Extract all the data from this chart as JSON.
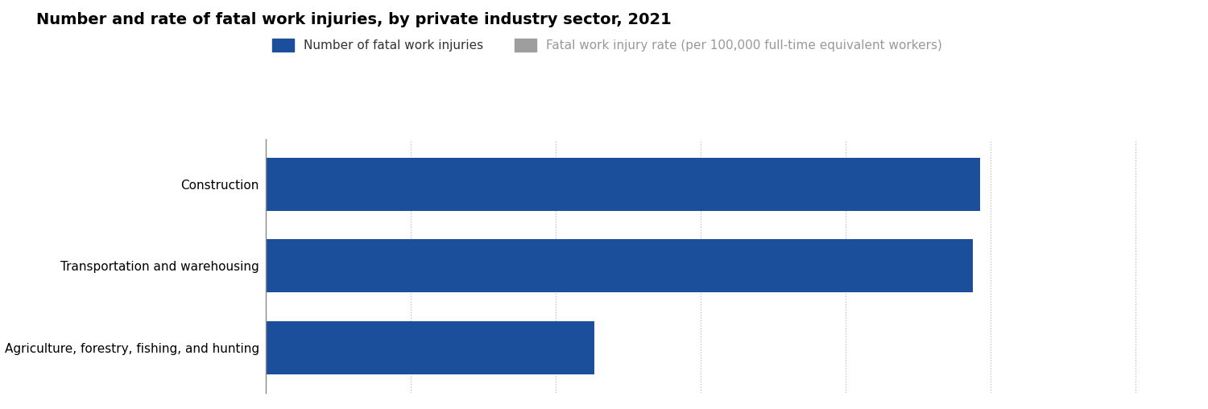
{
  "title": "Number and rate of fatal work injuries, by private industry sector, 2021",
  "categories": [
    "Agriculture, forestry, fishing, and hunting",
    "Transportation and warehousing",
    "Construction"
  ],
  "values": [
    453,
    976,
    986
  ],
  "bar_color": "#1b4f9b",
  "legend_items": [
    {
      "label": "Number of fatal work injuries",
      "color": "#1b4f9b"
    },
    {
      "label": "Fatal work injury rate (per 100,000 full-time equivalent workers)",
      "color": "#9e9e9e"
    }
  ],
  "xlim": [
    0,
    1250
  ],
  "xticks": [],
  "background_color": "#ffffff",
  "bar_height": 0.65,
  "title_fontsize": 14,
  "label_fontsize": 11,
  "legend_fontsize": 11,
  "grid_color": "#bbbbbb",
  "grid_linestyle": ":",
  "grid_positions": [
    200,
    400,
    600,
    800,
    1000,
    1200
  ],
  "spine_color": "#888888"
}
